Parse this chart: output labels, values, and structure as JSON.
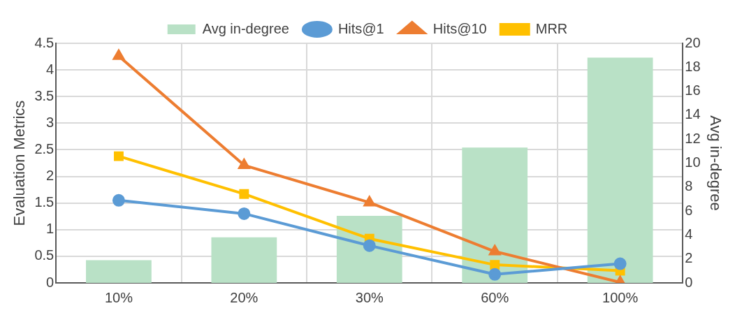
{
  "chart_data": {
    "type": "line",
    "categories": [
      "10%",
      "20%",
      "30%",
      "60%",
      "100%"
    ],
    "ylabel": "Evaluation Metrics",
    "y2label": "Avg in-degree",
    "ylim": [
      0,
      4.5
    ],
    "yticks": [
      0,
      0.5,
      1,
      1.5,
      2,
      2.5,
      3,
      3.5,
      4,
      4.5
    ],
    "y2lim": [
      0,
      20
    ],
    "y2ticks": [
      0,
      2,
      4,
      6,
      8,
      10,
      12,
      14,
      16,
      18,
      20
    ],
    "grid": true,
    "legend": "top",
    "series": [
      {
        "name": "Avg in-degree",
        "type": "bar",
        "axis": "y2",
        "color": "#b9e1c6",
        "values": [
          1.9,
          3.8,
          5.6,
          11.3,
          18.8
        ]
      },
      {
        "name": "Hits@1",
        "color": "#5b9bd5",
        "marker": "circle",
        "values": [
          1.55,
          1.3,
          0.7,
          0.16,
          0.36
        ]
      },
      {
        "name": "Hits@10",
        "color": "#ed7d31",
        "marker": "triangle",
        "values": [
          4.26,
          2.21,
          1.51,
          0.59,
          0.01
        ]
      },
      {
        "name": "MRR",
        "color": "#ffc000",
        "marker": "square",
        "values": [
          2.38,
          1.67,
          0.83,
          0.34,
          0.23
        ]
      }
    ]
  }
}
